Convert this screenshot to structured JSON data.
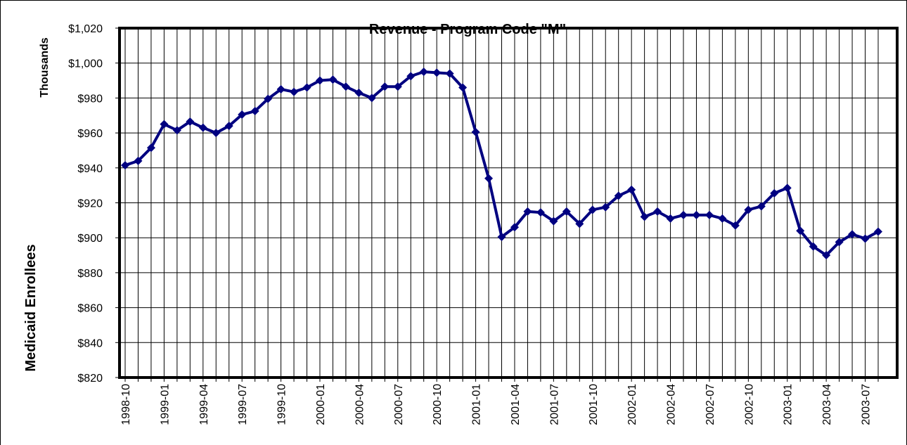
{
  "chart_data": {
    "type": "line",
    "title": "Revenue - Program Code \"M\"",
    "y_label": "Medicaid Enrollees",
    "y_unit": "Thousands",
    "categories": [
      "1998-10",
      null,
      null,
      "1999-01",
      null,
      null,
      "1999-04",
      null,
      null,
      "1999-07",
      null,
      null,
      "1999-10",
      null,
      null,
      "2000-01",
      null,
      null,
      "2000-04",
      null,
      null,
      "2000-07",
      null,
      null,
      "2000-10",
      null,
      null,
      "2001-01",
      null,
      null,
      "2001-04",
      null,
      null,
      "2001-07",
      null,
      null,
      "2001-10",
      null,
      null,
      "2002-01",
      null,
      null,
      "2002-04",
      null,
      null,
      "2002-07",
      null,
      null,
      "2002-10",
      null,
      null,
      "2003-01",
      null,
      null,
      "2003-04",
      null,
      null,
      "2003-07",
      null
    ],
    "series": [
      {
        "name": "Revenue",
        "color": "#000080",
        "values": [
          941.5,
          944,
          951.5,
          965,
          961.5,
          966.5,
          963,
          960,
          964,
          970.5,
          972.5,
          979.5,
          985,
          983.5,
          986,
          990,
          990.5,
          986.5,
          983,
          980,
          986.5,
          986.5,
          992.5,
          995,
          994.5,
          994,
          986,
          960.5,
          934,
          900.5,
          906,
          915,
          914.5,
          909.5,
          915,
          908,
          916,
          917.5,
          924,
          927.5,
          912,
          915,
          911,
          913,
          913,
          913,
          911,
          907,
          916,
          918,
          925.5,
          928.5,
          904,
          895,
          890,
          897.5,
          902,
          899.5,
          903.5
        ]
      }
    ],
    "ylim": [
      820,
      1020
    ],
    "yticks": [
      {
        "value": 820,
        "label": "$820"
      },
      {
        "value": 840,
        "label": "$840"
      },
      {
        "value": 860,
        "label": "$860"
      },
      {
        "value": 880,
        "label": "$880"
      },
      {
        "value": 900,
        "label": "$900"
      },
      {
        "value": 920,
        "label": "$920"
      },
      {
        "value": 940,
        "label": "$940"
      },
      {
        "value": 960,
        "label": "$960"
      },
      {
        "value": 980,
        "label": "$980"
      },
      {
        "value": 1000,
        "label": "$1,000"
      },
      {
        "value": 1020,
        "label": "$1,020"
      }
    ],
    "grid": true
  }
}
